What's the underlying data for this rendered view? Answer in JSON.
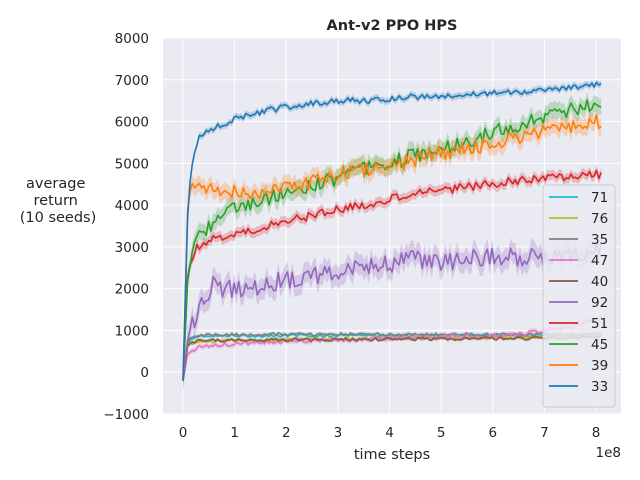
{
  "chart_data": {
    "type": "line",
    "title": "Ant-v2 PPO HPS",
    "xlabel": "time steps",
    "ylabel_lines": [
      "average",
      "return",
      "(10 seeds)"
    ],
    "x_multiplier": "1e8",
    "xlim": [
      0,
      8.1
    ],
    "ylim": [
      -1000,
      8000
    ],
    "x_ticks": [
      0,
      1,
      2,
      3,
      4,
      5,
      6,
      7,
      8
    ],
    "x_tick_labels": [
      "0",
      "1",
      "2",
      "3",
      "4",
      "5",
      "6",
      "7",
      "8"
    ],
    "y_ticks": [
      -1000,
      0,
      1000,
      2000,
      3000,
      4000,
      5000,
      6000,
      7000,
      8000
    ],
    "y_tick_labels": [
      "−1000",
      "0",
      "1000",
      "2000",
      "3000",
      "4000",
      "5000",
      "6000",
      "7000",
      "8000"
    ],
    "grid": true,
    "legend_position": "right",
    "x": [
      0,
      0.1,
      0.2,
      0.3,
      0.4,
      0.6,
      0.8,
      1.0,
      1.3,
      1.6,
      2.0,
      2.5,
      3.0,
      3.5,
      4.0,
      4.5,
      5.0,
      5.5,
      6.0,
      6.5,
      7.0,
      7.5,
      8.0,
      8.1
    ],
    "series": [
      {
        "name": "71",
        "color": "#17becf",
        "band": 40,
        "values": [
          -200,
          750,
          820,
          850,
          860,
          870,
          880,
          890,
          880,
          870,
          880,
          890,
          880,
          890,
          880,
          880,
          870,
          880,
          890,
          880,
          890,
          880,
          900,
          910
        ]
      },
      {
        "name": "76",
        "color": "#bcbd22",
        "band": 40,
        "values": [
          -200,
          680,
          700,
          720,
          730,
          740,
          750,
          760,
          760,
          770,
          780,
          790,
          790,
          800,
          800,
          810,
          810,
          820,
          830,
          830,
          850,
          860,
          880,
          900
        ]
      },
      {
        "name": "35",
        "color": "#7f7f7f",
        "band": 40,
        "values": [
          -200,
          800,
          850,
          870,
          880,
          890,
          890,
          900,
          890,
          900,
          910,
          900,
          910,
          900,
          910,
          900,
          900,
          910,
          900,
          900,
          910,
          900,
          920,
          920
        ]
      },
      {
        "name": "47",
        "color": "#e377c2",
        "band": 60,
        "values": [
          -200,
          500,
          550,
          580,
          600,
          640,
          660,
          680,
          700,
          720,
          740,
          760,
          780,
          800,
          820,
          840,
          850,
          860,
          870,
          900,
          1000,
          1100,
          1250,
          1300
        ]
      },
      {
        "name": "40",
        "color": "#8c564b",
        "band": 40,
        "values": [
          -200,
          700,
          720,
          740,
          750,
          760,
          760,
          770,
          760,
          770,
          780,
          780,
          790,
          780,
          790,
          800,
          800,
          800,
          810,
          810,
          820,
          830,
          850,
          860
        ]
      },
      {
        "name": "92",
        "color": "#9467bd",
        "band": 250,
        "values": [
          -200,
          800,
          1200,
          1500,
          1800,
          2100,
          1900,
          2050,
          2000,
          2150,
          2200,
          2300,
          2450,
          2500,
          2600,
          2700,
          2650,
          2700,
          2800,
          2750,
          2750,
          2800,
          2900,
          2950
        ]
      },
      {
        "name": "51",
        "color": "#d62728",
        "band": 120,
        "values": [
          -200,
          2500,
          2850,
          3000,
          3100,
          3200,
          3250,
          3300,
          3400,
          3500,
          3600,
          3750,
          3900,
          4000,
          4150,
          4250,
          4350,
          4450,
          4500,
          4600,
          4650,
          4700,
          4750,
          4700
        ]
      },
      {
        "name": "45",
        "color": "#2ca02c",
        "band": 200,
        "values": [
          -200,
          2400,
          2900,
          3200,
          3400,
          3600,
          3800,
          3900,
          4000,
          4150,
          4300,
          4450,
          4650,
          4850,
          5000,
          5200,
          5350,
          5550,
          5750,
          5900,
          6100,
          6300,
          6400,
          6450
        ]
      },
      {
        "name": "39",
        "color": "#ff7f0e",
        "band": 200,
        "values": [
          -200,
          4200,
          4450,
          4500,
          4450,
          4400,
          4350,
          4300,
          4300,
          4350,
          4450,
          4550,
          4750,
          4850,
          4950,
          5100,
          5250,
          5350,
          5500,
          5650,
          5750,
          5850,
          6000,
          6000
        ]
      },
      {
        "name": "33",
        "color": "#1f77b4",
        "band": 80,
        "values": [
          -200,
          4200,
          5200,
          5600,
          5750,
          5850,
          5950,
          6050,
          6150,
          6250,
          6350,
          6450,
          6500,
          6500,
          6550,
          6600,
          6600,
          6650,
          6700,
          6700,
          6750,
          6800,
          6900,
          6900
        ]
      }
    ]
  }
}
